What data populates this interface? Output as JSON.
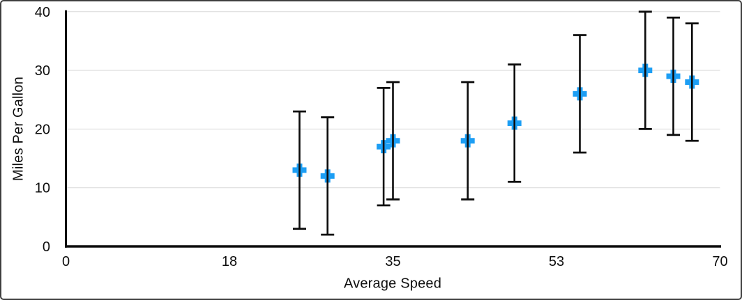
{
  "chart_data": {
    "type": "scatter",
    "title": "",
    "xlabel": "Average Speed",
    "ylabel": "Miles Per Gallon",
    "xlim": [
      0,
      70
    ],
    "ylim": [
      0,
      40
    ],
    "x_tick_labels": [
      "0",
      "18",
      "35",
      "53",
      "70"
    ],
    "x_tick_values": [
      0,
      17.5,
      35,
      52.5,
      70
    ],
    "y_ticks": [
      0,
      10,
      20,
      30,
      40
    ],
    "grid": "horizontal",
    "legend": "none",
    "marker": {
      "shape": "plus",
      "color": "#1C9EF4"
    },
    "error_bar_color": "#0c0c0c",
    "axis_color": "#0c0c0c",
    "gridline_color": "#d9d9d9",
    "text_color": "#0d0d0d",
    "series": [
      {
        "name": "Miles Per Gallon",
        "points": [
          {
            "x": 25,
            "y": 13
          },
          {
            "x": 28,
            "y": 12
          },
          {
            "x": 34,
            "y": 17
          },
          {
            "x": 35,
            "y": 18
          },
          {
            "x": 43,
            "y": 18
          },
          {
            "x": 48,
            "y": 21
          },
          {
            "x": 55,
            "y": 26
          },
          {
            "x": 62,
            "y": 30
          },
          {
            "x": 65,
            "y": 29
          },
          {
            "x": 67,
            "y": 28
          }
        ],
        "error_bars": {
          "type": "fixed",
          "plus": 10,
          "minus": 10
        }
      }
    ]
  }
}
